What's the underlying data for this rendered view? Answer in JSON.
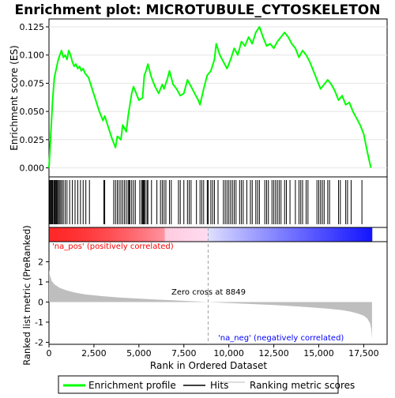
{
  "chart_data": {
    "type": "line",
    "title": "Enrichment plot: MICROTUBULE_CYTOSKELETON",
    "top_panel": {
      "ylabel": "Enrichment score (ES)",
      "ylim": [
        -0.008,
        0.132
      ],
      "yticks": [
        0.0,
        0.025,
        0.05,
        0.075,
        0.1,
        0.125
      ],
      "ytick_labels": [
        "0.000",
        "0.025",
        "0.050",
        "0.075",
        "0.100",
        "0.125"
      ],
      "series": [
        {
          "name": "Enrichment profile",
          "color": "#00ff00",
          "points": [
            [
              0,
              0.0
            ],
            [
              100,
              0.03
            ],
            [
              200,
              0.06
            ],
            [
              300,
              0.08
            ],
            [
              500,
              0.095
            ],
            [
              600,
              0.1
            ],
            [
              700,
              0.104
            ],
            [
              800,
              0.098
            ],
            [
              900,
              0.1
            ],
            [
              1000,
              0.096
            ],
            [
              1100,
              0.104
            ],
            [
              1200,
              0.1
            ],
            [
              1300,
              0.094
            ],
            [
              1400,
              0.09
            ],
            [
              1500,
              0.092
            ],
            [
              1600,
              0.088
            ],
            [
              1700,
              0.09
            ],
            [
              1800,
              0.086
            ],
            [
              1900,
              0.088
            ],
            [
              2000,
              0.084
            ],
            [
              2200,
              0.08
            ],
            [
              2400,
              0.07
            ],
            [
              2600,
              0.06
            ],
            [
              2800,
              0.05
            ],
            [
              3000,
              0.042
            ],
            [
              3100,
              0.046
            ],
            [
              3300,
              0.036
            ],
            [
              3500,
              0.026
            ],
            [
              3700,
              0.018
            ],
            [
              3800,
              0.028
            ],
            [
              4000,
              0.025
            ],
            [
              4100,
              0.038
            ],
            [
              4300,
              0.032
            ],
            [
              4400,
              0.046
            ],
            [
              4600,
              0.066
            ],
            [
              4700,
              0.072
            ],
            [
              4800,
              0.068
            ],
            [
              5000,
              0.06
            ],
            [
              5200,
              0.062
            ],
            [
              5300,
              0.082
            ],
            [
              5400,
              0.086
            ],
            [
              5500,
              0.092
            ],
            [
              5700,
              0.08
            ],
            [
              5900,
              0.072
            ],
            [
              6100,
              0.066
            ],
            [
              6300,
              0.074
            ],
            [
              6400,
              0.07
            ],
            [
              6600,
              0.08
            ],
            [
              6700,
              0.086
            ],
            [
              6900,
              0.074
            ],
            [
              7100,
              0.07
            ],
            [
              7300,
              0.064
            ],
            [
              7500,
              0.066
            ],
            [
              7700,
              0.078
            ],
            [
              7900,
              0.072
            ],
            [
              8100,
              0.066
            ],
            [
              8300,
              0.06
            ],
            [
              8400,
              0.056
            ],
            [
              8600,
              0.07
            ],
            [
              8800,
              0.082
            ],
            [
              9000,
              0.086
            ],
            [
              9200,
              0.096
            ],
            [
              9300,
              0.11
            ],
            [
              9500,
              0.1
            ],
            [
              9700,
              0.094
            ],
            [
              9900,
              0.088
            ],
            [
              10100,
              0.096
            ],
            [
              10300,
              0.106
            ],
            [
              10500,
              0.1
            ],
            [
              10700,
              0.112
            ],
            [
              10900,
              0.108
            ],
            [
              11100,
              0.116
            ],
            [
              11300,
              0.11
            ],
            [
              11500,
              0.12
            ],
            [
              11700,
              0.125
            ],
            [
              11900,
              0.116
            ],
            [
              12100,
              0.108
            ],
            [
              12300,
              0.11
            ],
            [
              12500,
              0.106
            ],
            [
              12700,
              0.112
            ],
            [
              12900,
              0.116
            ],
            [
              13100,
              0.12
            ],
            [
              13300,
              0.116
            ],
            [
              13500,
              0.11
            ],
            [
              13700,
              0.106
            ],
            [
              13900,
              0.098
            ],
            [
              14100,
              0.104
            ],
            [
              14300,
              0.1
            ],
            [
              14500,
              0.094
            ],
            [
              14700,
              0.086
            ],
            [
              14900,
              0.078
            ],
            [
              15100,
              0.07
            ],
            [
              15300,
              0.074
            ],
            [
              15500,
              0.078
            ],
            [
              15700,
              0.074
            ],
            [
              15900,
              0.068
            ],
            [
              16100,
              0.06
            ],
            [
              16300,
              0.064
            ],
            [
              16500,
              0.056
            ],
            [
              16700,
              0.058
            ],
            [
              16900,
              0.05
            ],
            [
              17100,
              0.044
            ],
            [
              17300,
              0.038
            ],
            [
              17500,
              0.03
            ],
            [
              17700,
              0.014
            ],
            [
              17900,
              0.0
            ]
          ]
        }
      ]
    },
    "hits_panel": {
      "series_name": "Hits",
      "hit_ranks": [
        20,
        60,
        100,
        140,
        180,
        220,
        280,
        330,
        380,
        420,
        470,
        520,
        580,
        650,
        720,
        800,
        900,
        1000,
        1150,
        1300,
        1450,
        1600,
        1750,
        1900,
        2050,
        2250,
        3050,
        3100,
        3600,
        3700,
        3800,
        3900,
        4000,
        4100,
        4200,
        4300,
        4400,
        4450,
        4500,
        4600,
        4700,
        4800,
        5050,
        5150,
        5200,
        5250,
        5300,
        5350,
        5450,
        5500,
        5700,
        6000,
        6200,
        6300,
        6400,
        6500,
        6700,
        6800,
        7200,
        7300,
        7500,
        7700,
        7800,
        7900,
        8200,
        8400,
        8500,
        8600,
        8800,
        8850,
        9000,
        9100,
        9200,
        9400,
        9700,
        9800,
        9900,
        10000,
        10100,
        10200,
        10300,
        10400,
        10600,
        10700,
        10800,
        11000,
        11200,
        11300,
        11500,
        11600,
        11700,
        12000,
        12100,
        12200,
        12400,
        12500,
        12600,
        12700,
        12800,
        12900,
        13100,
        13200,
        13400,
        13700,
        13900,
        14000,
        14100,
        14300,
        14400,
        14900,
        15000,
        15100,
        15200,
        15300,
        15500,
        15600,
        16100,
        16200,
        16500,
        16600,
        16800,
        17400
      ]
    },
    "rank_panel": {
      "ylabel": "Ranked list metric (PreRanked)",
      "xlabel": "Rank in Ordered Dataset",
      "ylim": [
        -2.1,
        3.0
      ],
      "yticks": [
        -2,
        -1,
        0,
        1,
        2
      ],
      "ytick_labels": [
        "-2",
        "-1",
        "0",
        "1",
        "2"
      ],
      "xlim": [
        0,
        18800
      ],
      "xticks": [
        0,
        2500,
        5000,
        7500,
        10000,
        12500,
        15000,
        17500
      ],
      "xtick_labels": [
        "0",
        "2,500",
        "5,000",
        "7,500",
        "10,000",
        "12,500",
        "15,000",
        "17,500"
      ],
      "series_name": "Ranking metric scores",
      "metric_curve": [
        [
          0,
          1.6
        ],
        [
          50,
          1.35
        ],
        [
          150,
          1.05
        ],
        [
          300,
          0.88
        ],
        [
          600,
          0.7
        ],
        [
          1000,
          0.57
        ],
        [
          1500,
          0.46
        ],
        [
          2000,
          0.38
        ],
        [
          3000,
          0.29
        ],
        [
          4000,
          0.22
        ],
        [
          5000,
          0.17
        ],
        [
          6000,
          0.12
        ],
        [
          7000,
          0.08
        ],
        [
          8000,
          0.04
        ],
        [
          8849,
          0.0
        ],
        [
          9500,
          -0.03
        ],
        [
          10500,
          -0.07
        ],
        [
          11500,
          -0.11
        ],
        [
          12500,
          -0.15
        ],
        [
          13500,
          -0.2
        ],
        [
          14500,
          -0.26
        ],
        [
          15500,
          -0.33
        ],
        [
          16300,
          -0.4
        ],
        [
          16800,
          -0.48
        ],
        [
          17200,
          -0.58
        ],
        [
          17500,
          -0.68
        ],
        [
          17700,
          -0.82
        ],
        [
          17850,
          -1.05
        ],
        [
          17920,
          -1.35
        ],
        [
          17960,
          -1.85
        ]
      ],
      "zero_cross_label": "Zero cross at 8849",
      "zero_cross_rank": 8849,
      "pos_label": "'na_pos' (positively correlated)",
      "neg_label": "'na_neg' (negatively correlated)",
      "pos_color": "#ff0000",
      "neg_color": "#0000ff"
    },
    "n_ranks": 17960,
    "legend": {
      "placement": "bottom",
      "entries": [
        "Enrichment profile",
        "Hits",
        "Ranking metric scores"
      ]
    },
    "colors": {
      "profile": "#00ff00",
      "hits": "#000000",
      "metric_fill": "#bebebe",
      "zero_line": "#a0a0a0",
      "axis": "#000000"
    }
  }
}
